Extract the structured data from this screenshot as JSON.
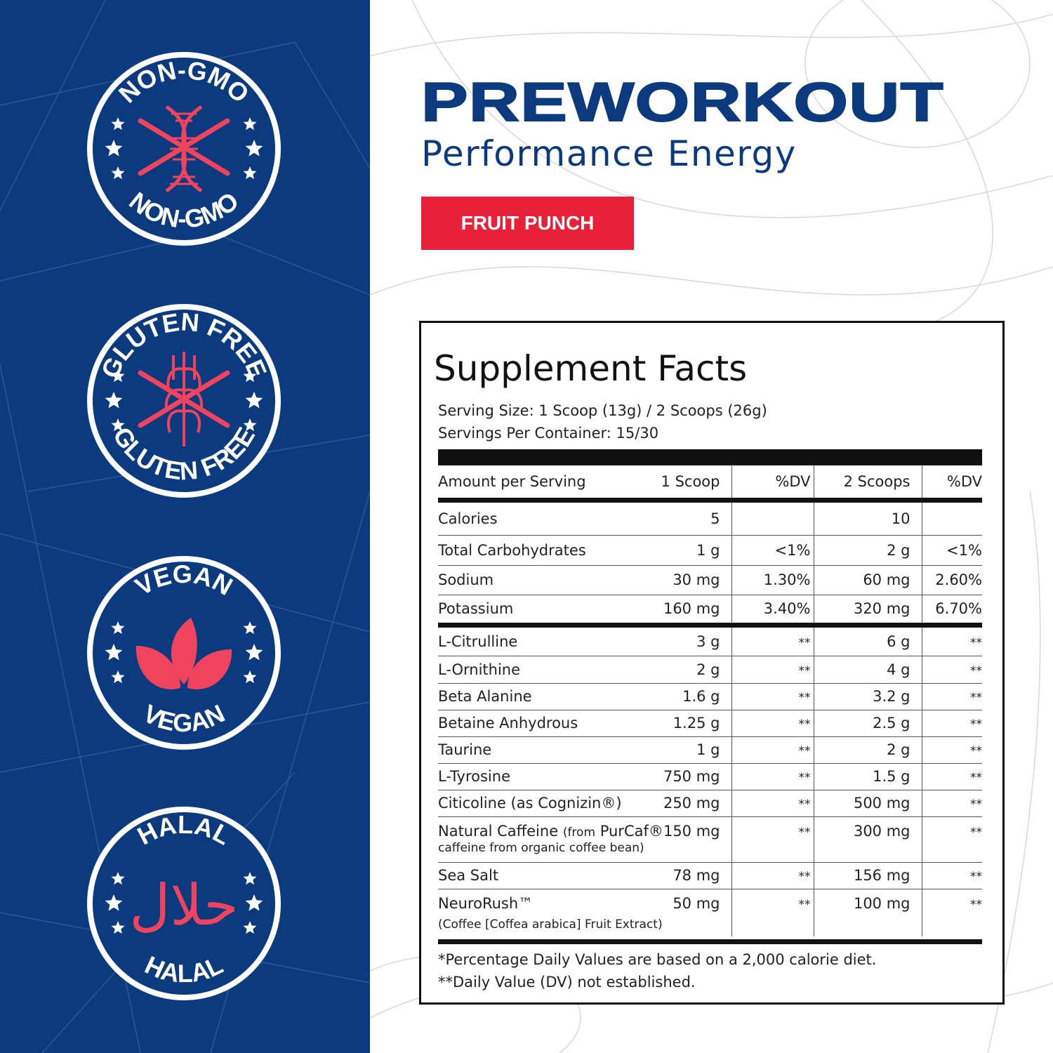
{
  "colors": {
    "brand_blue": "#0b3a7e",
    "accent_red": "#e8203a",
    "badge_pink": "#f0445e"
  },
  "badges": [
    {
      "name": "non-gmo",
      "top_text": "NON-GMO",
      "bottom_text": "NON-GMO",
      "icon": "crossed-dna-icon"
    },
    {
      "name": "gluten-free",
      "top_text": "GLUTEN FREE",
      "bottom_text": "GLUTEN FREE",
      "icon": "crossed-wheat-icon"
    },
    {
      "name": "vegan",
      "top_text": "VEGAN",
      "bottom_text": "VEGAN",
      "icon": "leaves-icon"
    },
    {
      "name": "halal",
      "top_text": "HALAL",
      "bottom_text": "HALAL",
      "icon": "arabic-halal-icon",
      "arabic": "حلال"
    }
  ],
  "product": {
    "title": "PREWORKOUT",
    "subtitle": "Performance Energy",
    "flavor": "FRUIT PUNCH"
  },
  "facts": {
    "heading": "Supplement Facts",
    "serving_size": "Serving Size: 1 Scoop (13g) / 2 Scoops (26g)",
    "servings_per_container": "Servings Per Container: 15/30",
    "columns": [
      "Amount per Serving",
      "1 Scoop",
      "%DV",
      "2 Scoops",
      "%DV"
    ],
    "rows": [
      {
        "name": "Calories",
        "one": "5",
        "dv1": "",
        "two": "10",
        "dv2": ""
      },
      {
        "name": "Total Carbohydrates",
        "one": "1 g",
        "dv1": "<1%",
        "two": "2 g",
        "dv2": "<1%"
      },
      {
        "name": "Sodium",
        "one": "30 mg",
        "dv1": "1.30%",
        "two": "60 mg",
        "dv2": "2.60%"
      },
      {
        "name": "Potassium",
        "one": "160 mg",
        "dv1": "3.40%",
        "two": "320 mg",
        "dv2": "6.70%"
      },
      {
        "name": "L-Citrulline",
        "one": "3 g",
        "dv1": "**",
        "two": "6 g",
        "dv2": "**"
      },
      {
        "name": "L-Ornithine",
        "one": "2 g",
        "dv1": "**",
        "two": "4 g",
        "dv2": "**"
      },
      {
        "name": "Beta Alanine",
        "one": "1.6 g",
        "dv1": "**",
        "two": "3.2 g",
        "dv2": "**"
      },
      {
        "name": "Betaine Anhydrous",
        "one": "1.25 g",
        "dv1": "**",
        "two": "2.5 g",
        "dv2": "**"
      },
      {
        "name": "Taurine",
        "one": "1 g",
        "dv1": "**",
        "two": "2 g",
        "dv2": "**"
      },
      {
        "name": "L-Tyrosine",
        "one": "750 mg",
        "dv1": "**",
        "two": "1.5 g",
        "dv2": "**"
      },
      {
        "name": "Citicoline (as Cognizin®)",
        "one": "250 mg",
        "dv1": "**",
        "two": "500 mg",
        "dv2": "**"
      },
      {
        "name": "Natural Caffeine",
        "note_inline": "(from",
        "brand": "PurCaf®",
        "note": "caffeine from organic coffee bean)",
        "one": "150 mg",
        "dv1": "**",
        "two": "300 mg",
        "dv2": "**"
      },
      {
        "name": "Sea Salt",
        "one": "78 mg",
        "dv1": "**",
        "two": "156 mg",
        "dv2": "**"
      },
      {
        "name": "NeuroRush™",
        "note": "(Coffee [Coffea arabica] Fruit Extract)",
        "one": "50 mg",
        "dv1": "**",
        "two": "100 mg",
        "dv2": "**"
      }
    ],
    "footnote1": "*Percentage Daily Values are based on a 2,000 calorie diet.",
    "footnote2": "**Daily Value (DV) not established."
  }
}
